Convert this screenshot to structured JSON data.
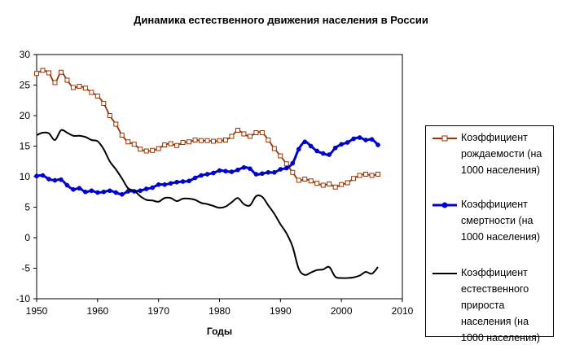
{
  "chart_data": {
    "type": "line",
    "title": "Динамика естественного движения населения в России",
    "xlabel": "Годы",
    "ylabel": "",
    "xlim": [
      1950,
      2010
    ],
    "ylim": [
      -10,
      30
    ],
    "xticks": [
      1950,
      1960,
      1970,
      1980,
      1990,
      2000,
      2010
    ],
    "yticks": [
      -10,
      -5,
      0,
      5,
      10,
      15,
      20,
      25,
      30
    ],
    "grid": false,
    "legend_position": "right",
    "series": [
      {
        "name": "Коэффициент рождаемости (на 1000 населения)",
        "color": "#993300",
        "marker": "square-open",
        "x": [
          1950,
          1951,
          1952,
          1953,
          1954,
          1955,
          1956,
          1957,
          1958,
          1959,
          1960,
          1961,
          1962,
          1963,
          1964,
          1965,
          1966,
          1967,
          1968,
          1969,
          1970,
          1971,
          1972,
          1973,
          1974,
          1975,
          1976,
          1977,
          1978,
          1979,
          1980,
          1981,
          1982,
          1983,
          1984,
          1985,
          1986,
          1987,
          1988,
          1989,
          1990,
          1991,
          1992,
          1993,
          1994,
          1995,
          1996,
          1997,
          1998,
          1999,
          2000,
          2001,
          2002,
          2003,
          2004,
          2005,
          2006
        ],
        "y": [
          26.9,
          27.4,
          27.0,
          25.4,
          27.1,
          25.8,
          24.6,
          24.8,
          24.5,
          23.8,
          23.2,
          22.0,
          20.0,
          18.6,
          16.8,
          15.7,
          15.3,
          14.5,
          14.2,
          14.3,
          14.6,
          15.2,
          15.4,
          15.1,
          15.6,
          15.7,
          16.0,
          15.9,
          15.9,
          15.8,
          15.9,
          16.0,
          16.6,
          17.6,
          17.0,
          16.6,
          17.2,
          17.2,
          16.0,
          14.6,
          13.4,
          12.1,
          10.7,
          9.4,
          9.6,
          9.3,
          8.9,
          8.6,
          8.8,
          8.3,
          8.7,
          9.0,
          9.7,
          10.2,
          10.4,
          10.2,
          10.4
        ]
      },
      {
        "name": "Коэффициент смертности (на 1000 населения)",
        "color": "#0000cc",
        "marker": "circle-filled",
        "x": [
          1950,
          1951,
          1952,
          1953,
          1954,
          1955,
          1956,
          1957,
          1958,
          1959,
          1960,
          1961,
          1962,
          1963,
          1964,
          1965,
          1966,
          1967,
          1968,
          1969,
          1970,
          1971,
          1972,
          1973,
          1974,
          1975,
          1976,
          1977,
          1978,
          1979,
          1980,
          1981,
          1982,
          1983,
          1984,
          1985,
          1986,
          1987,
          1988,
          1989,
          1990,
          1991,
          1992,
          1993,
          1994,
          1995,
          1996,
          1997,
          1998,
          1999,
          2000,
          2001,
          2002,
          2003,
          2004,
          2005,
          2006
        ],
        "y": [
          10.1,
          10.2,
          9.6,
          9.4,
          9.5,
          8.6,
          7.9,
          8.1,
          7.5,
          7.7,
          7.4,
          7.5,
          7.7,
          7.4,
          7.1,
          7.6,
          7.6,
          7.7,
          8.0,
          8.2,
          8.7,
          8.7,
          8.9,
          9.1,
          9.2,
          9.3,
          9.8,
          10.2,
          10.4,
          10.6,
          11.0,
          10.9,
          10.8,
          11.1,
          11.5,
          11.3,
          10.4,
          10.5,
          10.7,
          10.7,
          11.2,
          11.4,
          12.2,
          14.5,
          15.7,
          15.0,
          14.2,
          13.8,
          13.6,
          14.7,
          15.3,
          15.6,
          16.2,
          16.4,
          16.0,
          16.1,
          15.2
        ]
      },
      {
        "name": "Коэффициент естественного прироста населения (на 1000 населения)",
        "color": "#000000",
        "marker": "none",
        "x": [
          1950,
          1951,
          1952,
          1953,
          1954,
          1955,
          1956,
          1957,
          1958,
          1959,
          1960,
          1961,
          1962,
          1963,
          1964,
          1965,
          1966,
          1967,
          1968,
          1969,
          1970,
          1971,
          1972,
          1973,
          1974,
          1975,
          1976,
          1977,
          1978,
          1979,
          1980,
          1981,
          1982,
          1983,
          1984,
          1985,
          1986,
          1987,
          1988,
          1989,
          1990,
          1991,
          1992,
          1993,
          1994,
          1995,
          1996,
          1997,
          1998,
          1999,
          2000,
          2001,
          2002,
          2003,
          2004,
          2005,
          2006
        ],
        "y": [
          16.8,
          17.2,
          17.1,
          16.0,
          17.6,
          17.2,
          16.7,
          16.7,
          16.5,
          16.0,
          15.8,
          14.5,
          12.5,
          11.2,
          9.7,
          8.1,
          7.7,
          6.8,
          6.2,
          6.1,
          5.9,
          6.5,
          6.5,
          6.0,
          6.4,
          6.4,
          6.2,
          5.7,
          5.5,
          5.2,
          4.9,
          5.1,
          5.8,
          6.5,
          5.5,
          5.3,
          6.8,
          6.7,
          5.3,
          3.9,
          2.2,
          0.7,
          -1.5,
          -5.1,
          -6.1,
          -5.7,
          -5.3,
          -5.2,
          -4.8,
          -6.4,
          -6.6,
          -6.6,
          -6.5,
          -6.2,
          -5.6,
          -5.9,
          -4.8
        ]
      }
    ]
  }
}
